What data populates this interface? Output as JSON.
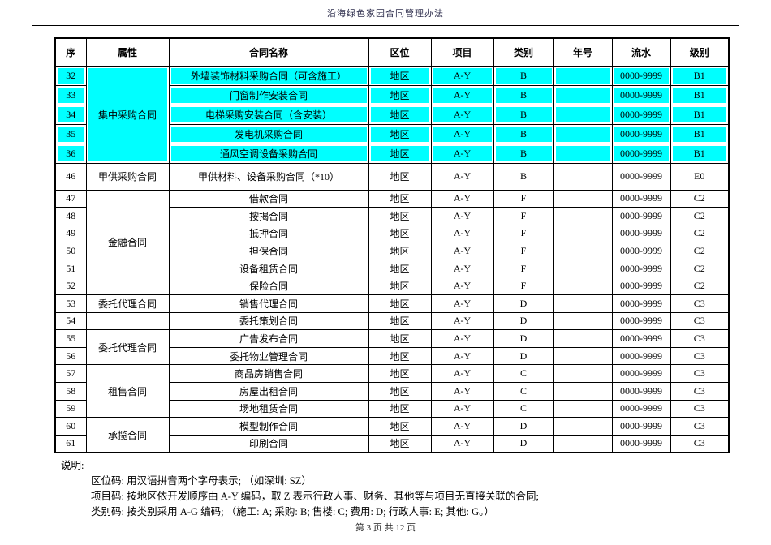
{
  "page": {
    "header_title": "沿海绿色家园合同管理办法",
    "footer": "第 3 页 共 12 页"
  },
  "table": {
    "highlight_color": "#00ffff",
    "columns": [
      "序",
      "属性",
      "合同名称",
      "区位",
      "项目",
      "类别",
      "年号",
      "流水",
      "级别"
    ],
    "rows": [
      {
        "seq": "32",
        "attr": {
          "label": "集中采购合同",
          "rowspan": 5
        },
        "name": "外墙装饰材料采购合同（可含施工）",
        "loc": "地区",
        "proj": "A-Y",
        "cat": "B",
        "year": "",
        "serial": "0000-9999",
        "level": "B1",
        "highlight": true
      },
      {
        "seq": "33",
        "attr": null,
        "name": "门窗制作安装合同",
        "loc": "地区",
        "proj": "A-Y",
        "cat": "B",
        "year": "",
        "serial": "0000-9999",
        "level": "B1",
        "highlight": true
      },
      {
        "seq": "34",
        "attr": null,
        "name": "电梯采购安装合同（含安装）",
        "loc": "地区",
        "proj": "A-Y",
        "cat": "B",
        "year": "",
        "serial": "0000-9999",
        "level": "B1",
        "highlight": true
      },
      {
        "seq": "35",
        "attr": null,
        "name": "发电机采购合同",
        "loc": "地区",
        "proj": "A-Y",
        "cat": "B",
        "year": "",
        "serial": "0000-9999",
        "level": "B1",
        "highlight": true
      },
      {
        "seq": "36",
        "attr": null,
        "name": "通风空调设备采购合同",
        "loc": "地区",
        "proj": "A-Y",
        "cat": "B",
        "year": "",
        "serial": "0000-9999",
        "level": "B1",
        "highlight": true
      },
      {
        "seq": "46",
        "attr": {
          "label": "甲供采购合同",
          "rowspan": 1
        },
        "name": "甲供材料、设备采购合同（*10）",
        "loc": "地区",
        "proj": "A-Y",
        "cat": "B",
        "year": "",
        "serial": "0000-9999",
        "level": "E0",
        "highlight": false,
        "tall": true
      },
      {
        "seq": "47",
        "attr": {
          "label": "金融合同",
          "rowspan": 6
        },
        "name": "借款合同",
        "loc": "地区",
        "proj": "A-Y",
        "cat": "F",
        "year": "",
        "serial": "0000-9999",
        "level": "C2",
        "highlight": false
      },
      {
        "seq": "48",
        "attr": null,
        "name": "按揭合同",
        "loc": "地区",
        "proj": "A-Y",
        "cat": "F",
        "year": "",
        "serial": "0000-9999",
        "level": "C2",
        "highlight": false
      },
      {
        "seq": "49",
        "attr": null,
        "name": "抵押合同",
        "loc": "地区",
        "proj": "A-Y",
        "cat": "F",
        "year": "",
        "serial": "0000-9999",
        "level": "C2",
        "highlight": false
      },
      {
        "seq": "50",
        "attr": null,
        "name": "担保合同",
        "loc": "地区",
        "proj": "A-Y",
        "cat": "F",
        "year": "",
        "serial": "0000-9999",
        "level": "C2",
        "highlight": false
      },
      {
        "seq": "51",
        "attr": null,
        "name": "设备租赁合同",
        "loc": "地区",
        "proj": "A-Y",
        "cat": "F",
        "year": "",
        "serial": "0000-9999",
        "level": "C2",
        "highlight": false
      },
      {
        "seq": "52",
        "attr": null,
        "name": "保险合同",
        "loc": "地区",
        "proj": "A-Y",
        "cat": "F",
        "year": "",
        "serial": "0000-9999",
        "level": "C2",
        "highlight": false
      },
      {
        "seq": "53",
        "attr": {
          "label": "委托代理合同",
          "rowspan": 1
        },
        "name": "销售代理合同",
        "loc": "地区",
        "proj": "A-Y",
        "cat": "D",
        "year": "",
        "serial": "0000-9999",
        "level": "C3",
        "highlight": false
      },
      {
        "seq": "54",
        "attr": {
          "label": "",
          "rowspan": 1
        },
        "name": "委托策划合同",
        "loc": "地区",
        "proj": "A-Y",
        "cat": "D",
        "year": "",
        "serial": "0000-9999",
        "level": "C3",
        "highlight": false
      },
      {
        "seq": "55",
        "attr": {
          "label": "委托代理合同",
          "rowspan": 2
        },
        "name": "广告发布合同",
        "loc": "地区",
        "proj": "A-Y",
        "cat": "D",
        "year": "",
        "serial": "0000-9999",
        "level": "C3",
        "highlight": false
      },
      {
        "seq": "56",
        "attr": null,
        "name": "委托物业管理合同",
        "loc": "地区",
        "proj": "A-Y",
        "cat": "D",
        "year": "",
        "serial": "0000-9999",
        "level": "C3",
        "highlight": false
      },
      {
        "seq": "57",
        "attr": {
          "label": "租售合同",
          "rowspan": 3
        },
        "name": "商品房销售合同",
        "loc": "地区",
        "proj": "A-Y",
        "cat": "C",
        "year": "",
        "serial": "0000-9999",
        "level": "C3",
        "highlight": false
      },
      {
        "seq": "58",
        "attr": null,
        "name": "房屋出租合同",
        "loc": "地区",
        "proj": "A-Y",
        "cat": "C",
        "year": "",
        "serial": "0000-9999",
        "level": "C3",
        "highlight": false
      },
      {
        "seq": "59",
        "attr": null,
        "name": "场地租赁合同",
        "loc": "地区",
        "proj": "A-Y",
        "cat": "C",
        "year": "",
        "serial": "0000-9999",
        "level": "C3",
        "highlight": false
      },
      {
        "seq": "60",
        "attr": {
          "label": "承揽合同",
          "rowspan": 2
        },
        "name": "模型制作合同",
        "loc": "地区",
        "proj": "A-Y",
        "cat": "D",
        "year": "",
        "serial": "0000-9999",
        "level": "C3",
        "highlight": false
      },
      {
        "seq": "61",
        "attr": null,
        "name": "印刷合同",
        "loc": "地区",
        "proj": "A-Y",
        "cat": "D",
        "year": "",
        "serial": "0000-9999",
        "level": "C3",
        "highlight": false
      }
    ]
  },
  "notes": {
    "title": "说明:",
    "lines": [
      "区位码: 用汉语拼音两个字母表示; （如深圳: SZ）",
      "项目码: 按地区依开发顺序由 A-Y 编码，取 Z 表示行政人事、财务、其他等与项目无直接关联的合同;",
      "类别码: 按类别采用 A-G 编码; （施工: A; 采购: B; 售楼: C; 费用: D; 行政人事: E; 其他: G。）"
    ]
  }
}
